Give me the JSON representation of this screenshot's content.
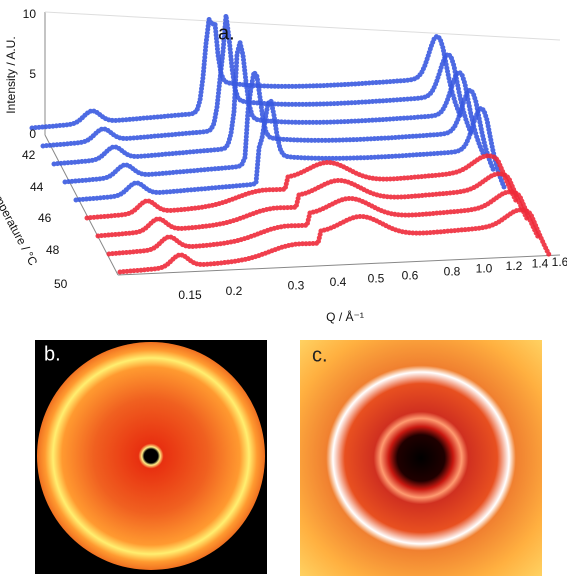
{
  "panels": {
    "a": {
      "label": "a.",
      "intensity_axis": {
        "label": "Intensity / A.U.",
        "ticks": [
          "0",
          "5",
          "10"
        ]
      },
      "temperature_axis": {
        "label": "Temperature / °C",
        "ticks": [
          "42",
          "44",
          "46",
          "48",
          "50"
        ]
      },
      "q_axis": {
        "label": "Q / Å⁻¹",
        "ticks": [
          "0.15",
          "0.2",
          "0.3",
          "0.4",
          "0.5",
          "0.6",
          "0.8",
          "1.0",
          "1.2",
          "1.4",
          "1.6"
        ]
      }
    },
    "b": {
      "label": "b."
    },
    "c": {
      "label": "c."
    }
  }
}
